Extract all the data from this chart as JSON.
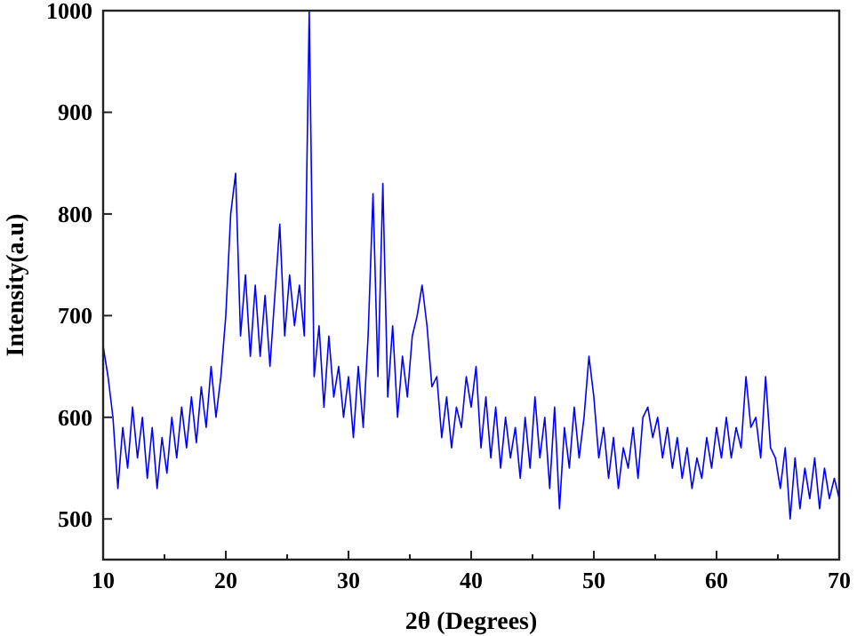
{
  "chart_data": {
    "type": "line",
    "xlabel": "2θ (Degrees)",
    "ylabel": "Intensity(a.u)",
    "xlim": [
      10,
      70
    ],
    "ylim": [
      460,
      1000
    ],
    "xticks": [
      10,
      {
        "value": 15,
        "label": null
      },
      20,
      {
        "value": 25,
        "label": null
      },
      30,
      {
        "value": 35,
        "label": null
      },
      40,
      {
        "value": 45,
        "label": null
      },
      50,
      {
        "value": 55,
        "label": null
      },
      60,
      {
        "value": 65,
        "label": null
      },
      70
    ],
    "yticks": [
      500,
      600,
      700,
      800,
      900,
      1000
    ],
    "grid": false,
    "marker": "none",
    "line_style": "solid",
    "series": [
      {
        "color": "#0000ff",
        "x": [
          10.0,
          10.4,
          10.8,
          11.2,
          11.6,
          12.0,
          12.4,
          12.8,
          13.2,
          13.6,
          14.0,
          14.4,
          14.8,
          15.2,
          15.6,
          16.0,
          16.4,
          16.8,
          17.2,
          17.6,
          18.0,
          18.4,
          18.8,
          19.2,
          19.6,
          20.0,
          20.4,
          20.8,
          21.2,
          21.6,
          22.0,
          22.4,
          22.8,
          23.2,
          23.6,
          24.0,
          24.4,
          24.8,
          25.2,
          25.6,
          26.0,
          26.4,
          26.8,
          27.2,
          27.6,
          28.0,
          28.4,
          28.8,
          29.2,
          29.6,
          30.0,
          30.4,
          30.8,
          31.2,
          31.6,
          32.0,
          32.4,
          32.8,
          33.2,
          33.6,
          34.0,
          34.4,
          34.8,
          35.2,
          35.6,
          36.0,
          36.4,
          36.8,
          37.2,
          37.6,
          38.0,
          38.4,
          38.8,
          39.2,
          39.6,
          40.0,
          40.4,
          40.8,
          41.2,
          41.6,
          42.0,
          42.4,
          42.8,
          43.2,
          43.6,
          44.0,
          44.4,
          44.8,
          45.2,
          45.6,
          46.0,
          46.4,
          46.8,
          47.2,
          47.6,
          48.0,
          48.4,
          48.8,
          49.2,
          49.6,
          50.0,
          50.4,
          50.8,
          51.2,
          51.6,
          52.0,
          52.4,
          52.8,
          53.2,
          53.6,
          54.0,
          54.4,
          54.8,
          55.2,
          55.6,
          56.0,
          56.4,
          56.8,
          57.2,
          57.6,
          58.0,
          58.4,
          58.8,
          59.2,
          59.6,
          60.0,
          60.4,
          60.8,
          61.2,
          61.6,
          62.0,
          62.4,
          62.8,
          63.2,
          63.6,
          64.0,
          64.4,
          64.8,
          65.2,
          65.6,
          66.0,
          66.4,
          66.8,
          67.2,
          67.6,
          68.0,
          68.4,
          68.8,
          69.2,
          69.6,
          70.0
        ],
        "values": [
          670,
          640,
          600,
          530,
          590,
          550,
          610,
          560,
          600,
          540,
          590,
          530,
          580,
          545,
          600,
          560,
          610,
          570,
          620,
          575,
          630,
          590,
          650,
          600,
          640,
          700,
          800,
          840,
          680,
          740,
          660,
          730,
          660,
          720,
          650,
          720,
          790,
          680,
          740,
          690,
          730,
          680,
          1000,
          640,
          690,
          610,
          680,
          620,
          650,
          600,
          640,
          580,
          650,
          590,
          680,
          820,
          640,
          830,
          620,
          690,
          600,
          660,
          620,
          680,
          700,
          730,
          690,
          630,
          640,
          580,
          620,
          570,
          610,
          590,
          640,
          610,
          650,
          570,
          620,
          560,
          610,
          550,
          600,
          560,
          590,
          540,
          600,
          550,
          620,
          560,
          600,
          530,
          610,
          510,
          590,
          550,
          610,
          560,
          600,
          660,
          620,
          560,
          590,
          540,
          580,
          530,
          570,
          550,
          590,
          540,
          600,
          610,
          580,
          600,
          560,
          590,
          550,
          580,
          540,
          570,
          530,
          560,
          540,
          580,
          550,
          590,
          560,
          600,
          560,
          590,
          570,
          640,
          590,
          600,
          560,
          640,
          570,
          560,
          530,
          570,
          500,
          560,
          510,
          550,
          520,
          560,
          510,
          550,
          520,
          540,
          520
        ]
      }
    ]
  }
}
